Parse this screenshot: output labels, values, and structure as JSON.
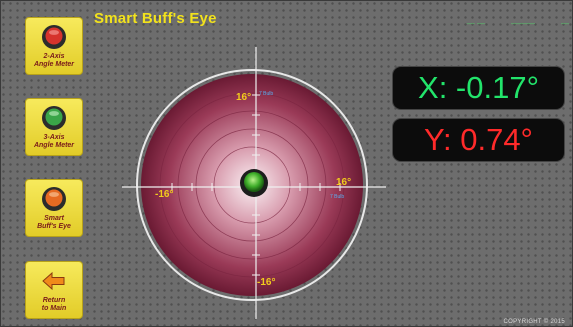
{
  "app": {
    "title": "Smart Buff's Eye"
  },
  "top_status": [
    "— —",
    "———",
    "—"
  ],
  "nav": [
    {
      "label_line1": "2-Axis",
      "label_line2": "Angle Meter",
      "icon": "red-button-icon"
    },
    {
      "label_line1": "3-Axis",
      "label_line2": "Angle Meter",
      "icon": "green-button-icon"
    },
    {
      "label_line1": "Smart",
      "label_line2": "Buff's Eye",
      "icon": "orange-button-icon"
    },
    {
      "label_line1": "Return",
      "label_line2": "to Main",
      "icon": "left-arrow-icon"
    }
  ],
  "readouts": {
    "x": {
      "text": "X: -0.17°",
      "value": -0.17,
      "color": "#22e46b"
    },
    "y": {
      "text": "Y: 0.74°",
      "value": 0.74,
      "color": "#ff2a2a"
    }
  },
  "target": {
    "top_label": "16°",
    "bottom_label": "-16°",
    "left_label": "-16°",
    "right_label": "16°",
    "top_sub": "7 Bulb",
    "right_sub": "7 Bulb"
  },
  "copyright": "COPYRIGHT © 2015"
}
